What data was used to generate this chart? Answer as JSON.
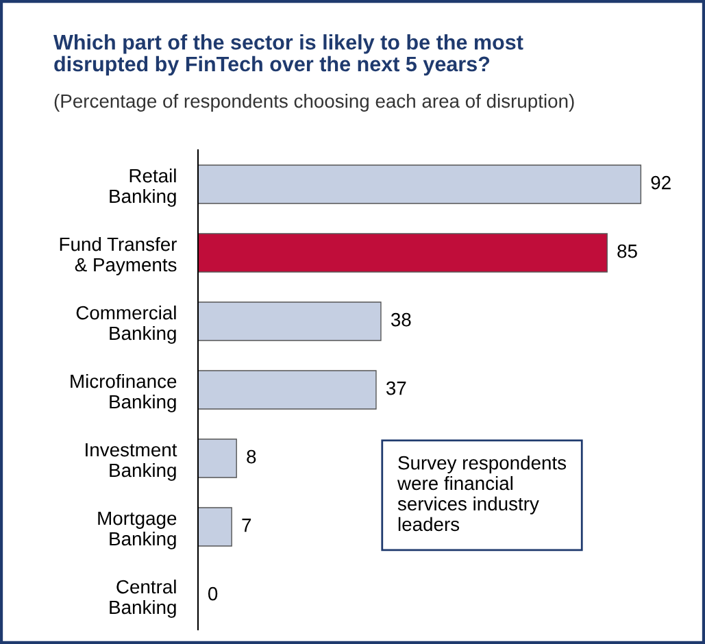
{
  "chart_data": {
    "type": "bar",
    "orientation": "horizontal",
    "title": "Which part of the sector is likely to be the most\ndisrupted by FinTech over the next 5 years?",
    "subtitle": "(Percentage of respondents choosing each area of disruption)",
    "categories": [
      "Retail\nBanking",
      "Fund Transfer\n& Payments",
      "Commercial\nBanking",
      "Microfinance\nBanking",
      "Investment\nBanking",
      "Mortgage\nBanking",
      "Central\nBanking"
    ],
    "values": [
      92,
      85,
      38,
      37,
      8,
      7,
      0
    ],
    "colors": [
      "#c5cfe2",
      "#c00d3a",
      "#c5cfe2",
      "#c5cfe2",
      "#c5cfe2",
      "#c5cfe2",
      "#c5cfe2"
    ],
    "data_labels": true,
    "tick_labels": "y",
    "grid": false,
    "annotations": [
      "Survey respondents\nwere financial\nservices industry\nleaders"
    ]
  }
}
